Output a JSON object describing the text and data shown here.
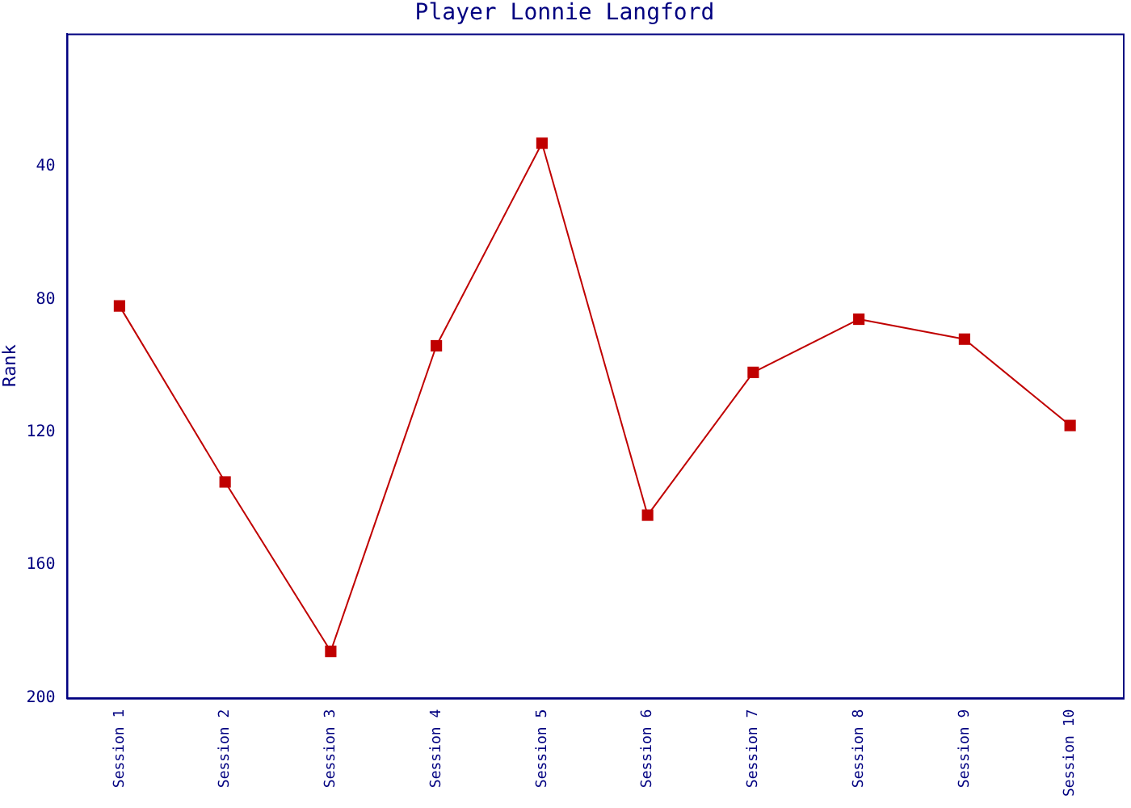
{
  "chart_data": {
    "type": "line",
    "title": "Player Lonnie Langford",
    "ylabel": "Rank",
    "categories": [
      "Session 1",
      "Session 2",
      "Session 3",
      "Session 4",
      "Session 5",
      "Session 6",
      "Session 7",
      "Session 8",
      "Session 9",
      "Session 10"
    ],
    "series": [
      {
        "color": "#c00000",
        "values": [
          82,
          135,
          186,
          94,
          33,
          145,
          102,
          86,
          92,
          118
        ]
      }
    ],
    "ylim": [
      200,
      0
    ],
    "yticks": [
      40,
      80,
      120,
      160,
      200
    ],
    "grid": false,
    "legend": false,
    "marker": "square",
    "line_style": "solid"
  }
}
